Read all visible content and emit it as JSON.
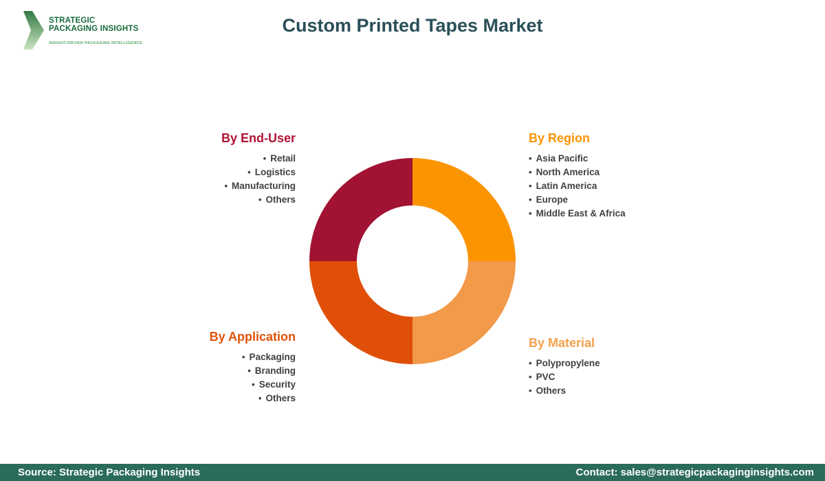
{
  "header": {
    "title": "Custom Printed Tapes Market",
    "title_color": "#2A4F58"
  },
  "logo": {
    "line1": "STRATEGIC",
    "line2": "PACKAGING INSIGHTS",
    "tagline": "INSIGHT-DRIVEN PACKAGING INTELLIGENCE",
    "name_color": "#17693A",
    "tagline_color": "#55A45F",
    "chevron_color_top": "#337A47",
    "chevron_color_bottom": "#C9E3BD"
  },
  "lists": {
    "bullet": "•",
    "item_color": "#3F3F3F"
  },
  "sections": {
    "end_user": {
      "heading": "By End-User",
      "heading_color": "#B11235",
      "items": [
        "Retail",
        "Logistics",
        "Manufacturing",
        "Others"
      ]
    },
    "region": {
      "heading": "By Region",
      "heading_color": "#FB9401",
      "items": [
        "Asia Pacific",
        "North America",
        "Latin America",
        "Europe",
        "Middle East & Africa"
      ]
    },
    "application": {
      "heading": "By Application",
      "heading_color": "#E0520A",
      "items": [
        "Packaging",
        "Branding",
        "Security",
        "Others"
      ]
    },
    "material": {
      "heading": "By Material",
      "heading_color": "#F5A14D",
      "items": [
        "Polypropylene",
        "PVC",
        "Others"
      ]
    }
  },
  "chart_data": {
    "type": "pie",
    "donut": true,
    "inner_radius_ratio": 0.54,
    "start_angle_deg": 0,
    "direction": "clockwise",
    "title": "Custom Printed Tapes Market",
    "legend_position": "none",
    "segments": [
      {
        "name": "By Region",
        "value": 25,
        "color": "#FB9401",
        "position": "top-right"
      },
      {
        "name": "By Material",
        "value": 25,
        "color": "#F2994A",
        "position": "bottom-right"
      },
      {
        "name": "By Application",
        "value": 25,
        "color": "#DF4F08",
        "position": "bottom-left"
      },
      {
        "name": "By End-User",
        "value": 25,
        "color": "#A11233",
        "position": "top-left"
      }
    ]
  },
  "footer": {
    "source": "Source: Strategic Packaging Insights",
    "contact": "Contact: sales@strategicpackaginginsights.com",
    "background": "#2B6B5A",
    "text_color": "#FFFFFF"
  }
}
